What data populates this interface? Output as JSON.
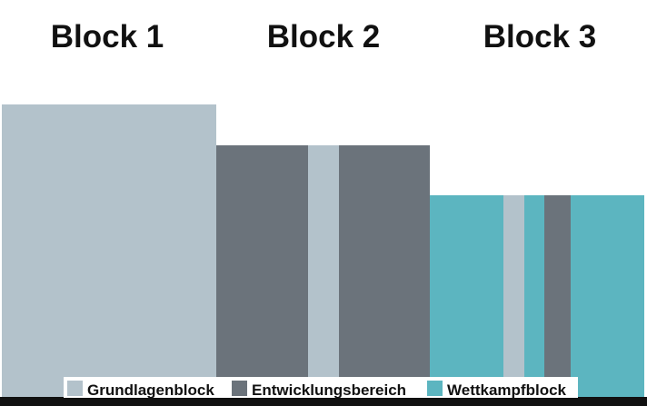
{
  "blocks": [
    {
      "title": "Block 1"
    },
    {
      "title": "Block 2"
    },
    {
      "title": "Block 3"
    }
  ],
  "legend": {
    "items": [
      {
        "label": "Grundlagenblock"
      },
      {
        "label": "Entwicklungsbereich"
      },
      {
        "label": "Wettkampfblock"
      }
    ]
  }
}
